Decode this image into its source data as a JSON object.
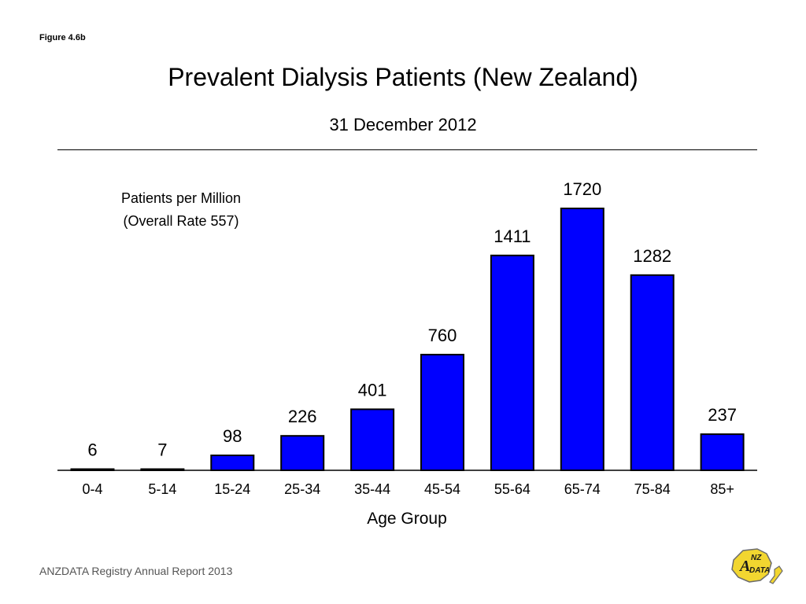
{
  "figure_label": "Figure 4.6b",
  "annotation": [
    "Patients per Million",
    "(Overall Rate 557)"
  ],
  "footer": "ANZDATA Registry Annual Report 2013",
  "logo": {
    "text_a": "A",
    "text_nz": "NZ",
    "text_data": "DATA",
    "icon": "anzdata-logo"
  },
  "colors": {
    "bar": "#0000ff",
    "bar_stroke": "#000000"
  },
  "chart_data": {
    "type": "bar",
    "title": "Prevalent Dialysis Patients (New Zealand)",
    "subtitle": "31 December 2012",
    "xlabel": "Age Group",
    "ylabel": "",
    "categories": [
      "0-4",
      "5-14",
      "15-24",
      "25-34",
      "35-44",
      "45-54",
      "55-64",
      "65-74",
      "75-84",
      "85+"
    ],
    "values": [
      6,
      7,
      98,
      226,
      401,
      760,
      1411,
      1720,
      1282,
      237
    ],
    "data_labels": [
      "6",
      "7",
      "98",
      "226",
      "401",
      "760",
      "1411",
      "1720",
      "1282",
      "237"
    ],
    "ylim": [
      0,
      1720
    ],
    "grid": false,
    "legend": "none"
  }
}
